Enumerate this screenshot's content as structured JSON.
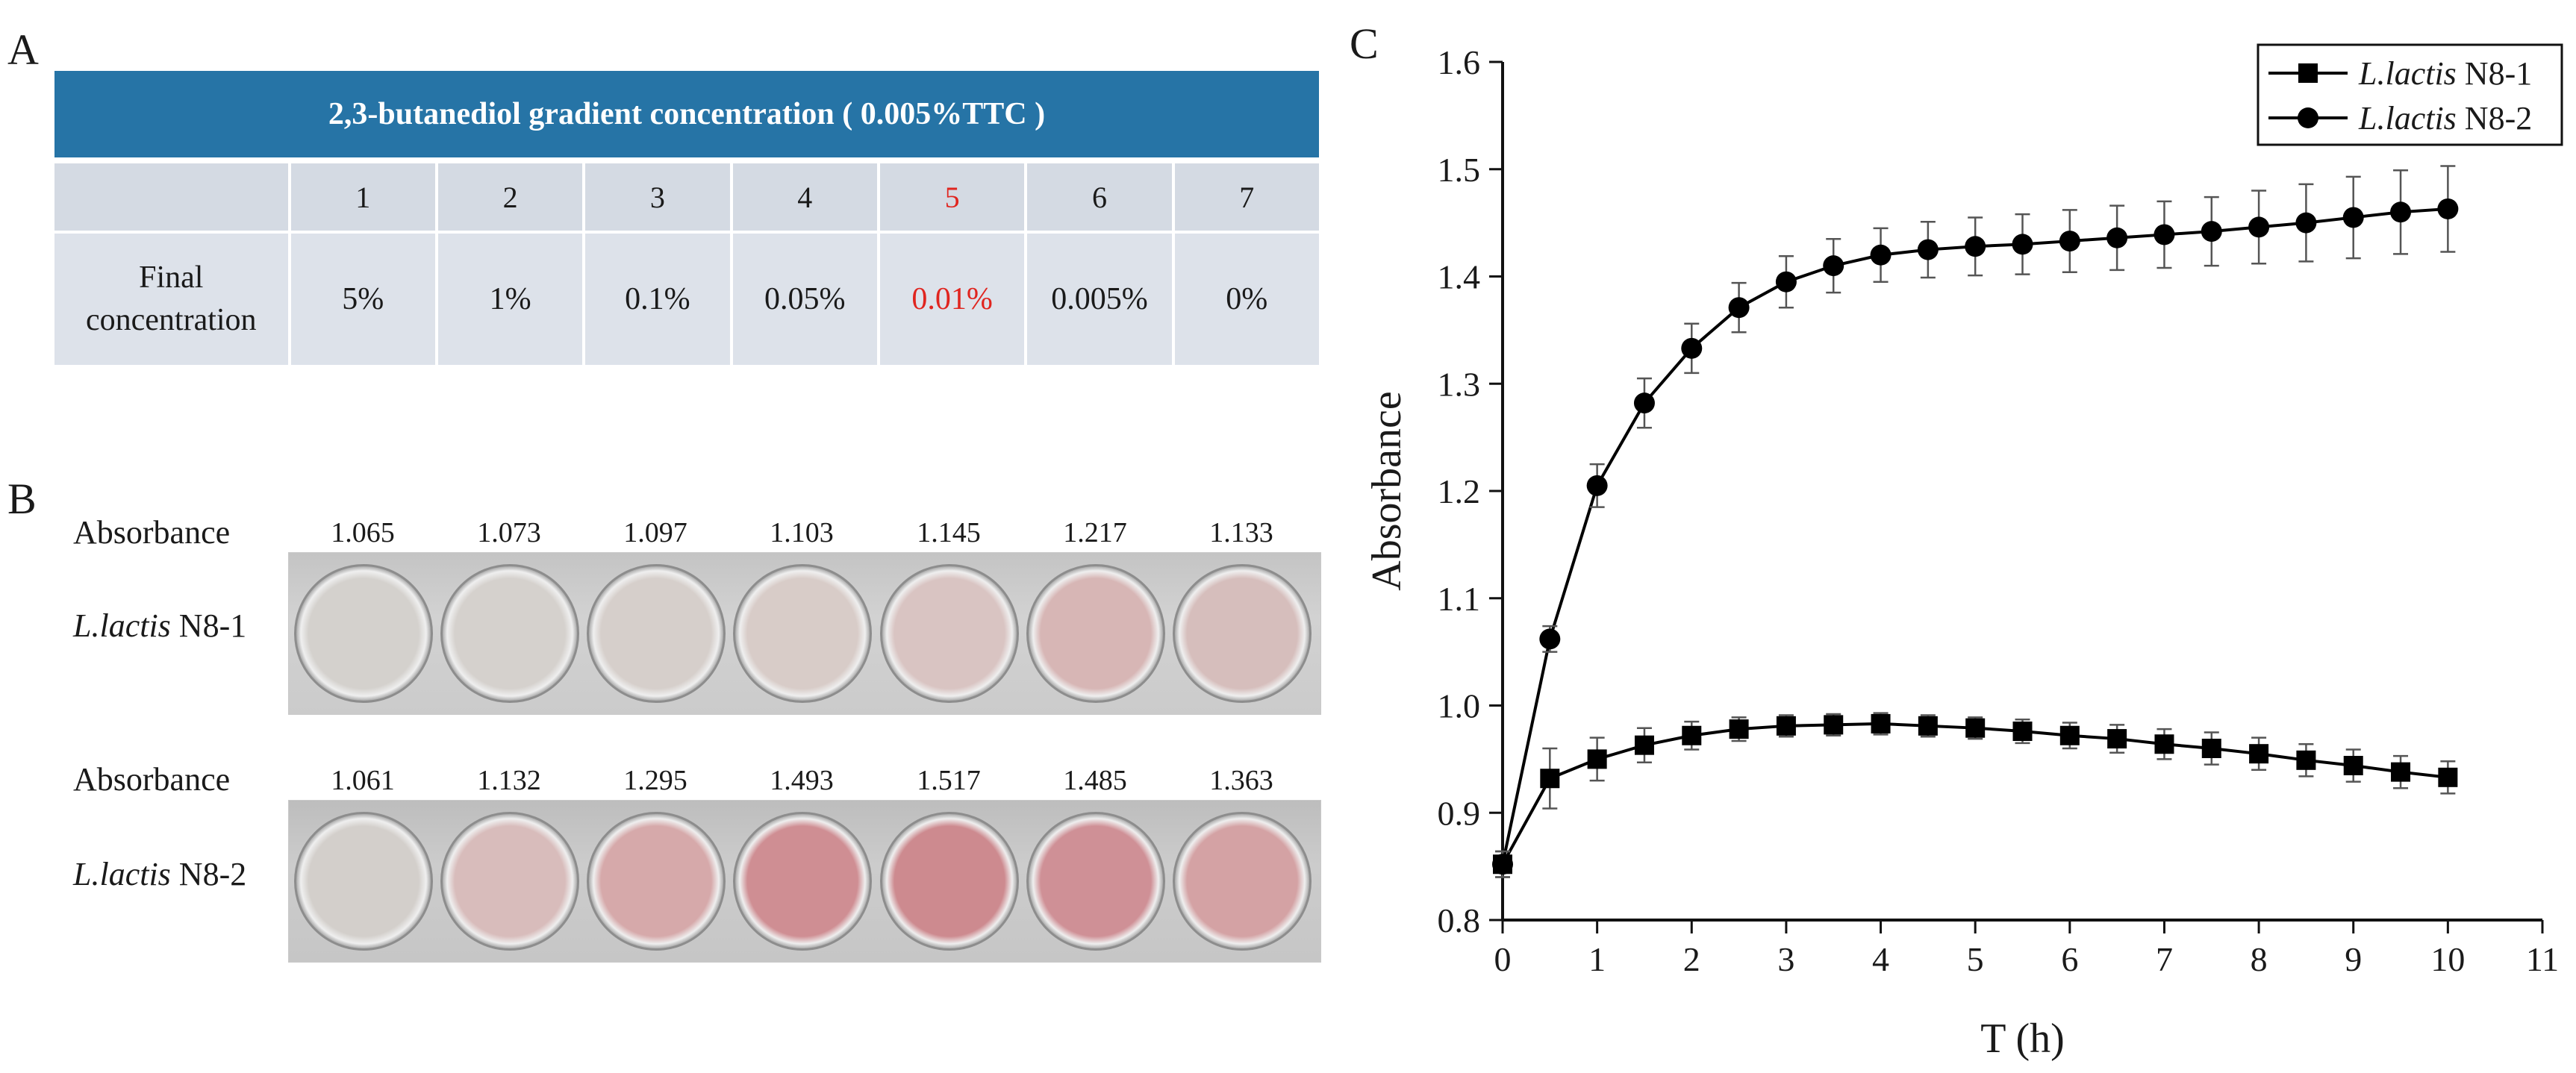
{
  "panel_labels": {
    "a": "A",
    "b": "B",
    "c": "C"
  },
  "table_a": {
    "header": "2,3-butanediol gradient concentration ( 0.005%TTC )",
    "columns": [
      "1",
      "2",
      "3",
      "4",
      "5",
      "6",
      "7"
    ],
    "row_label_line1": "Final",
    "row_label_line2": "concentration",
    "values": [
      "5%",
      "1%",
      "0.1%",
      "0.05%",
      "0.01%",
      "0.005%",
      "0%"
    ],
    "highlight_color": "#e0251f",
    "header_color": "#2674a6"
  },
  "panel_b": {
    "absorbance_label": "Absorbance",
    "strain1_italic": "L.lactis",
    "strain1_suffix": " N8-1",
    "strain2_italic": "L.lactis",
    "strain2_suffix": " N8-2",
    "n8_1_values": [
      "1.065",
      "1.073",
      "1.097",
      "1.103",
      "1.145",
      "1.217",
      "1.133"
    ],
    "n8_2_values": [
      "1.061",
      "1.132",
      "1.295",
      "1.493",
      "1.517",
      "1.485",
      "1.363"
    ],
    "n8_1_well_colors": [
      "#d4d1cd",
      "#d5d1cd",
      "#d6cfcb",
      "#d8ccc8",
      "#d9c4c2",
      "#d7b6b5",
      "#d6bebc"
    ],
    "n8_2_well_colors": [
      "#d3cfcb",
      "#d8bcbb",
      "#d6a9aa",
      "#cf8e93",
      "#cd8a8f",
      "#cf9096",
      "#d4a2a4"
    ]
  },
  "chart_data": {
    "type": "line",
    "xlabel": "T (h)",
    "ylabel": "Absorbance",
    "xlim": [
      0,
      11
    ],
    "ylim": [
      0.8,
      1.6
    ],
    "xticks": [
      0,
      1,
      2,
      3,
      4,
      5,
      6,
      7,
      8,
      9,
      10,
      11
    ],
    "yticks": [
      0.8,
      0.9,
      1.0,
      1.1,
      1.2,
      1.3,
      1.4,
      1.5,
      1.6
    ],
    "legend_position": "top-right",
    "x": [
      0,
      0.5,
      1,
      1.5,
      2,
      2.5,
      3,
      3.5,
      4,
      4.5,
      5,
      5.5,
      6,
      6.5,
      7,
      7.5,
      8,
      8.5,
      9,
      9.5,
      10
    ],
    "series": [
      {
        "name_italic": "L.lactis",
        "name_suffix": " N8-1",
        "marker": "square",
        "values": [
          0.852,
          0.932,
          0.95,
          0.963,
          0.972,
          0.978,
          0.981,
          0.982,
          0.983,
          0.981,
          0.979,
          0.976,
          0.972,
          0.969,
          0.964,
          0.96,
          0.955,
          0.949,
          0.944,
          0.938,
          0.933
        ],
        "errors": [
          0.012,
          0.028,
          0.02,
          0.016,
          0.013,
          0.011,
          0.01,
          0.01,
          0.01,
          0.01,
          0.01,
          0.011,
          0.012,
          0.013,
          0.014,
          0.015,
          0.015,
          0.015,
          0.015,
          0.015,
          0.015
        ]
      },
      {
        "name_italic": "L.lactis",
        "name_suffix": " N8-2",
        "marker": "circle",
        "values": [
          0.852,
          1.062,
          1.205,
          1.282,
          1.333,
          1.371,
          1.395,
          1.41,
          1.42,
          1.425,
          1.428,
          1.43,
          1.433,
          1.436,
          1.439,
          1.442,
          1.446,
          1.45,
          1.455,
          1.46,
          1.463
        ],
        "errors": [
          0.012,
          0.012,
          0.02,
          0.023,
          0.023,
          0.023,
          0.024,
          0.025,
          0.025,
          0.026,
          0.027,
          0.028,
          0.029,
          0.03,
          0.031,
          0.032,
          0.034,
          0.036,
          0.038,
          0.039,
          0.04
        ]
      }
    ]
  }
}
